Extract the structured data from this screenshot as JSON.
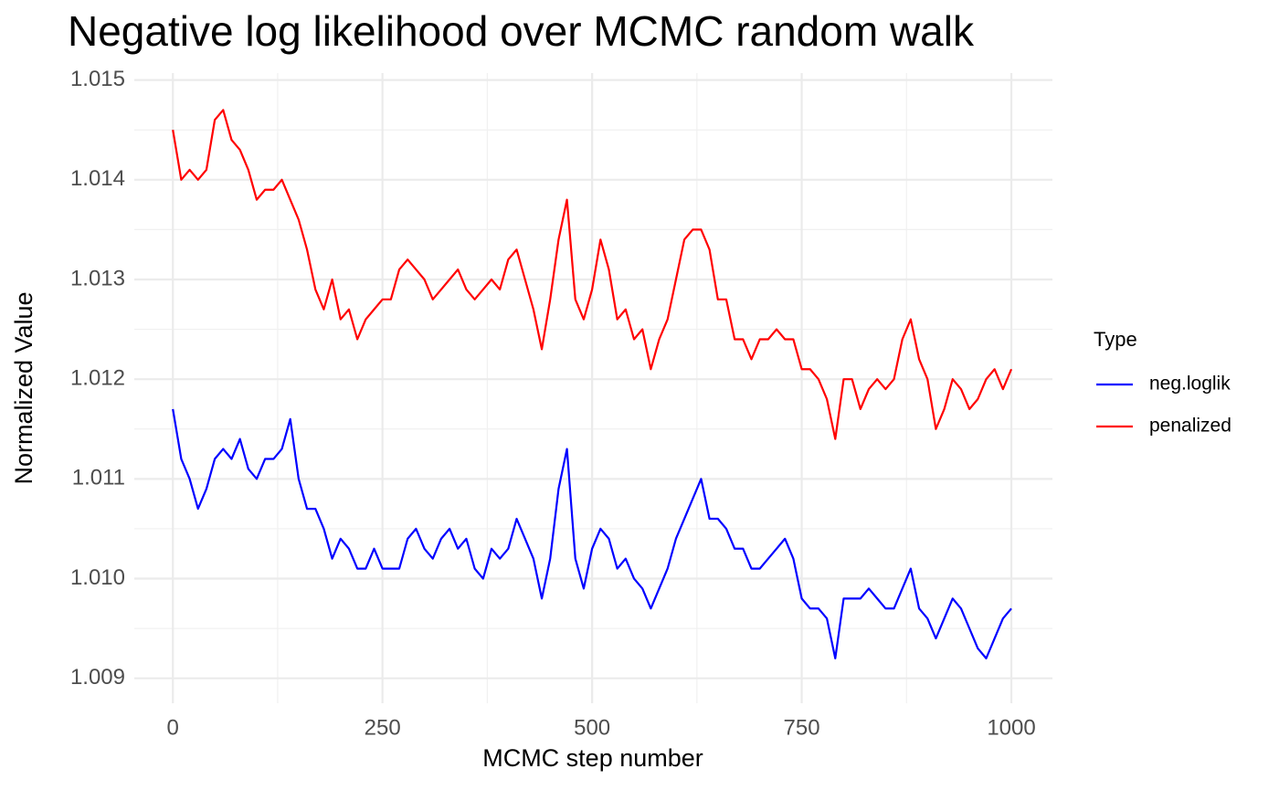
{
  "chart_data": {
    "type": "line",
    "title": "Negative log likelihood over MCMC random walk",
    "x_label": "MCMC step number",
    "y_label": "Normalized Value",
    "legend_title": "Type",
    "legend_position": "right",
    "grid": true,
    "x": [
      0,
      10,
      20,
      30,
      40,
      50,
      60,
      70,
      80,
      90,
      100,
      110,
      120,
      130,
      140,
      150,
      160,
      170,
      180,
      190,
      200,
      210,
      220,
      230,
      240,
      250,
      260,
      270,
      280,
      290,
      300,
      310,
      320,
      330,
      340,
      350,
      360,
      370,
      380,
      390,
      400,
      410,
      420,
      430,
      440,
      450,
      460,
      470,
      480,
      490,
      500,
      510,
      520,
      530,
      540,
      550,
      560,
      570,
      580,
      590,
      600,
      610,
      620,
      630,
      640,
      650,
      660,
      670,
      680,
      690,
      700,
      710,
      720,
      730,
      740,
      750,
      760,
      770,
      780,
      790,
      800,
      810,
      820,
      830,
      840,
      850,
      860,
      870,
      880,
      890,
      900,
      910,
      920,
      930,
      940,
      950,
      960,
      970,
      980,
      990,
      1000
    ],
    "series": [
      {
        "name": "neg.loglik",
        "color": "#0000ff",
        "values": [
          1.0117,
          1.0112,
          1.011,
          1.0107,
          1.0109,
          1.0112,
          1.0113,
          1.0112,
          1.0114,
          1.0111,
          1.011,
          1.0112,
          1.0112,
          1.0113,
          1.0116,
          1.011,
          1.0107,
          1.0107,
          1.0105,
          1.0102,
          1.0104,
          1.0103,
          1.0101,
          1.0101,
          1.0103,
          1.0101,
          1.0101,
          1.0101,
          1.0104,
          1.0105,
          1.0103,
          1.0102,
          1.0104,
          1.0105,
          1.0103,
          1.0104,
          1.0101,
          1.01,
          1.0103,
          1.0102,
          1.0103,
          1.0106,
          1.0104,
          1.0102,
          1.0098,
          1.0102,
          1.0109,
          1.0113,
          1.0102,
          1.0099,
          1.0103,
          1.0105,
          1.0104,
          1.0101,
          1.0102,
          1.01,
          1.0099,
          1.0097,
          1.0099,
          1.0101,
          1.0104,
          1.0106,
          1.0108,
          1.011,
          1.0106,
          1.0106,
          1.0105,
          1.0103,
          1.0103,
          1.0101,
          1.0101,
          1.0102,
          1.0103,
          1.0104,
          1.0102,
          1.0098,
          1.0097,
          1.0097,
          1.0096,
          1.0092,
          1.0098,
          1.0098,
          1.0098,
          1.0099,
          1.0098,
          1.0097,
          1.0097,
          1.0099,
          1.0101,
          1.0097,
          1.0096,
          1.0094,
          1.0096,
          1.0098,
          1.0097,
          1.0095,
          1.0093,
          1.0092,
          1.0094,
          1.0096,
          1.0097
        ]
      },
      {
        "name": "penalized",
        "color": "#ff0000",
        "values": [
          1.0145,
          1.014,
          1.0141,
          1.014,
          1.0141,
          1.0146,
          1.0147,
          1.0144,
          1.0143,
          1.0141,
          1.0138,
          1.0139,
          1.0139,
          1.014,
          1.0138,
          1.0136,
          1.0133,
          1.0129,
          1.0127,
          1.013,
          1.0126,
          1.0127,
          1.0124,
          1.0126,
          1.0127,
          1.0128,
          1.0128,
          1.0131,
          1.0132,
          1.0131,
          1.013,
          1.0128,
          1.0129,
          1.013,
          1.0131,
          1.0129,
          1.0128,
          1.0129,
          1.013,
          1.0129,
          1.0132,
          1.0133,
          1.013,
          1.0127,
          1.0123,
          1.0128,
          1.0134,
          1.0138,
          1.0128,
          1.0126,
          1.0129,
          1.0134,
          1.0131,
          1.0126,
          1.0127,
          1.0124,
          1.0125,
          1.0121,
          1.0124,
          1.0126,
          1.013,
          1.0134,
          1.0135,
          1.0135,
          1.0133,
          1.0128,
          1.0128,
          1.0124,
          1.0124,
          1.0122,
          1.0124,
          1.0124,
          1.0125,
          1.0124,
          1.0124,
          1.0121,
          1.0121,
          1.012,
          1.0118,
          1.0114,
          1.012,
          1.012,
          1.0117,
          1.0119,
          1.012,
          1.0119,
          1.012,
          1.0124,
          1.0126,
          1.0122,
          1.012,
          1.0115,
          1.0117,
          1.012,
          1.0119,
          1.0117,
          1.0118,
          1.012,
          1.0121,
          1.0119,
          1.0121
        ]
      }
    ],
    "xlim": [
      -46,
      1049
    ],
    "xticks": [
      0,
      250,
      500,
      750,
      1000
    ],
    "x_minor_ticks": [
      125,
      375,
      625,
      875
    ],
    "ylim": [
      1.00875,
      1.01507
    ],
    "yticks": [
      1.009,
      {
        "value": 1.01,
        "label": "1.010"
      },
      1.011,
      1.012,
      1.013,
      1.014,
      1.015
    ],
    "y_minor_ticks": [
      1.0095,
      1.0105,
      1.0115,
      1.0125,
      1.0135,
      1.0145
    ]
  }
}
